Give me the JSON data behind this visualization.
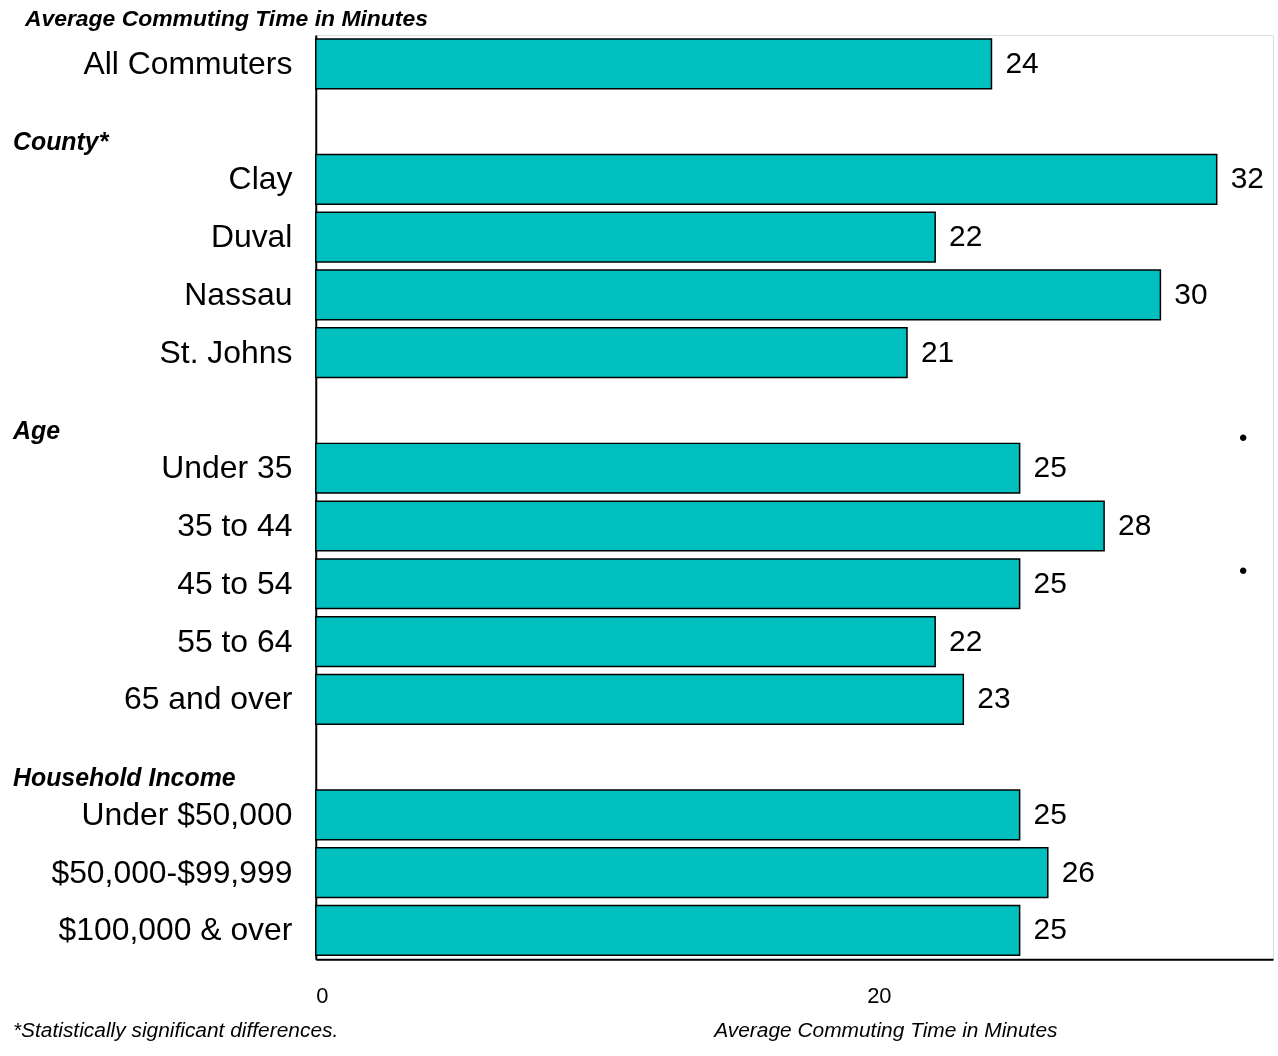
{
  "chart_data": {
    "type": "bar",
    "orientation": "horizontal",
    "title": "Average Commuting Time in Minutes",
    "xlabel": "Average Commuting Time in Minutes",
    "categories": [
      "All Commuters",
      null,
      "Clay",
      "Duval",
      "Nassau",
      "St. Johns",
      null,
      "Under 35",
      "35 to 44",
      "45 to 54",
      "55 to 64",
      "65 and over",
      null,
      "Under $50,000",
      "$50,000-$99,999",
      "$100,000 & over"
    ],
    "values": [
      24,
      null,
      32,
      22,
      30,
      21,
      null,
      25,
      28,
      25,
      22,
      23,
      null,
      25,
      26,
      25
    ],
    "color": "#00bfbf",
    "data_labels": true,
    "xlim": [
      0,
      34
    ],
    "xticks": [
      0,
      20
    ],
    "grid": false,
    "annotations": [
      "County*",
      "Age",
      "Household Income",
      "*Statistically significant differences.",
      "•",
      "•"
    ]
  }
}
